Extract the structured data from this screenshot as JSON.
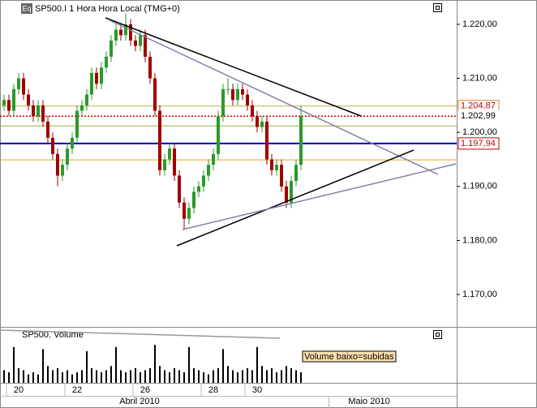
{
  "chart_data": {
    "type": "candlestick",
    "title": "SP500.I 1 Hora Hora Local (TMG+0)",
    "icon": "Eq",
    "open": [
      1205,
      1206,
      1204,
      1208,
      1210,
      1207,
      1205,
      1203,
      1205,
      1202,
      1199,
      1196,
      1192,
      1194,
      1197,
      1199,
      1204,
      1205,
      1207,
      1211,
      1209,
      1212,
      1214,
      1217,
      1219,
      1218,
      1220,
      1217,
      1216,
      1218,
      1214,
      1210,
      1204,
      1193,
      1195,
      1197,
      1192,
      1187,
      1184,
      1186,
      1189,
      1190,
      1192,
      1194,
      1196,
      1203,
      1208,
      1208,
      1206,
      1208,
      1207,
      1205,
      1203,
      1201,
      1202,
      1195,
      1193,
      1194,
      1190,
      1187,
      1191,
      1194
    ],
    "high": [
      1207,
      1207,
      1209,
      1211,
      1211,
      1208,
      1206,
      1206,
      1206,
      1203,
      1200,
      1197,
      1195,
      1198,
      1200,
      1205,
      1206,
      1208,
      1212,
      1212,
      1213,
      1215,
      1218,
      1220,
      1220,
      1222,
      1221,
      1218,
      1219,
      1219,
      1215,
      1211,
      1205,
      1196,
      1198,
      1198,
      1193,
      1188,
      1187,
      1190,
      1191,
      1193,
      1195,
      1197,
      1204,
      1209,
      1210,
      1209,
      1209,
      1209,
      1208,
      1206,
      1204,
      1203,
      1203,
      1196,
      1195,
      1195,
      1191,
      1192,
      1195,
      1205
    ],
    "low": [
      1204,
      1203,
      1203,
      1207,
      1206,
      1204,
      1202,
      1202,
      1201,
      1198,
      1195,
      1190,
      1191,
      1193,
      1196,
      1198,
      1203,
      1204,
      1206,
      1208,
      1208,
      1211,
      1213,
      1216,
      1217,
      1217,
      1216,
      1215,
      1215,
      1213,
      1209,
      1203,
      1192,
      1192,
      1194,
      1191,
      1186,
      1182,
      1183,
      1185,
      1188,
      1189,
      1191,
      1193,
      1195,
      1202,
      1207,
      1205,
      1205,
      1206,
      1204,
      1202,
      1200,
      1200,
      1194,
      1192,
      1192,
      1189,
      1186,
      1186,
      1190,
      1193
    ],
    "close": [
      1206,
      1204,
      1208,
      1210,
      1207,
      1205,
      1203,
      1205,
      1202,
      1199,
      1196,
      1192,
      1194,
      1197,
      1199,
      1204,
      1205,
      1207,
      1211,
      1209,
      1212,
      1214,
      1217,
      1219,
      1218,
      1220,
      1217,
      1216,
      1218,
      1214,
      1210,
      1204,
      1193,
      1195,
      1197,
      1192,
      1187,
      1184,
      1186,
      1189,
      1190,
      1192,
      1194,
      1196,
      1203,
      1208,
      1208,
      1206,
      1208,
      1207,
      1205,
      1203,
      1201,
      1202,
      1195,
      1193,
      1194,
      1190,
      1187,
      1191,
      1194,
      1203
    ],
    "categories": [
      null,
      null,
      null,
      "20",
      null,
      null,
      null,
      null,
      null,
      null,
      null,
      null,
      null,
      null,
      null,
      "22",
      null,
      null,
      null,
      null,
      null,
      null,
      null,
      null,
      null,
      null,
      null,
      null,
      null,
      "26",
      null,
      null,
      null,
      null,
      null,
      null,
      null,
      null,
      null,
      null,
      null,
      null,
      null,
      "28",
      null,
      null,
      null,
      null,
      null,
      null,
      null,
      null,
      "30",
      null,
      null,
      null,
      null,
      null,
      null,
      null,
      null,
      null
    ],
    "months": [
      "Abril 2010",
      "Maio 2010"
    ],
    "up_color": "#2a9a2a",
    "down_color": "#a00000",
    "ylim": [
      1164,
      1224.5
    ],
    "yticks": [
      {
        "value": 1170,
        "label": "1.170,00"
      },
      {
        "value": 1180,
        "label": "1.180,00"
      },
      {
        "value": 1190,
        "label": "1.190,00"
      },
      {
        "value": 1200,
        "label": "1.200,00"
      },
      {
        "value": 1210,
        "label": "1.210,00"
      },
      {
        "value": 1220,
        "label": "1.220,00"
      }
    ],
    "levels": [
      {
        "value": 1204.87,
        "label": "1.204,87",
        "color": "#c8b040"
      },
      {
        "value": 1202.99,
        "label": "1.202,99",
        "color": "#c00000"
      },
      {
        "value": 1201.2,
        "color": "#90b040"
      },
      {
        "value": 1197.94,
        "label": "1.197,94",
        "color": "#0000c0"
      },
      {
        "value": 1194.9,
        "color": "#f0a030"
      }
    ],
    "volume": {
      "title": "SP500.  Volume",
      "color": "#000000",
      "ylim": [
        0,
        100
      ],
      "values": [
        30,
        25,
        85,
        35,
        30,
        20,
        25,
        20,
        80,
        40,
        30,
        35,
        25,
        30,
        20,
        25,
        30,
        75,
        35,
        30,
        25,
        30,
        40,
        85,
        30,
        25,
        30,
        35,
        25,
        30,
        35,
        90,
        40,
        30,
        25,
        35,
        30,
        25,
        85,
        35,
        30,
        25,
        20,
        30,
        35,
        80,
        40,
        30,
        25,
        30,
        35,
        30,
        85,
        40,
        30,
        35,
        25,
        30,
        40,
        35,
        30,
        25
      ]
    },
    "annotation": "Volume baixo=subidas"
  }
}
